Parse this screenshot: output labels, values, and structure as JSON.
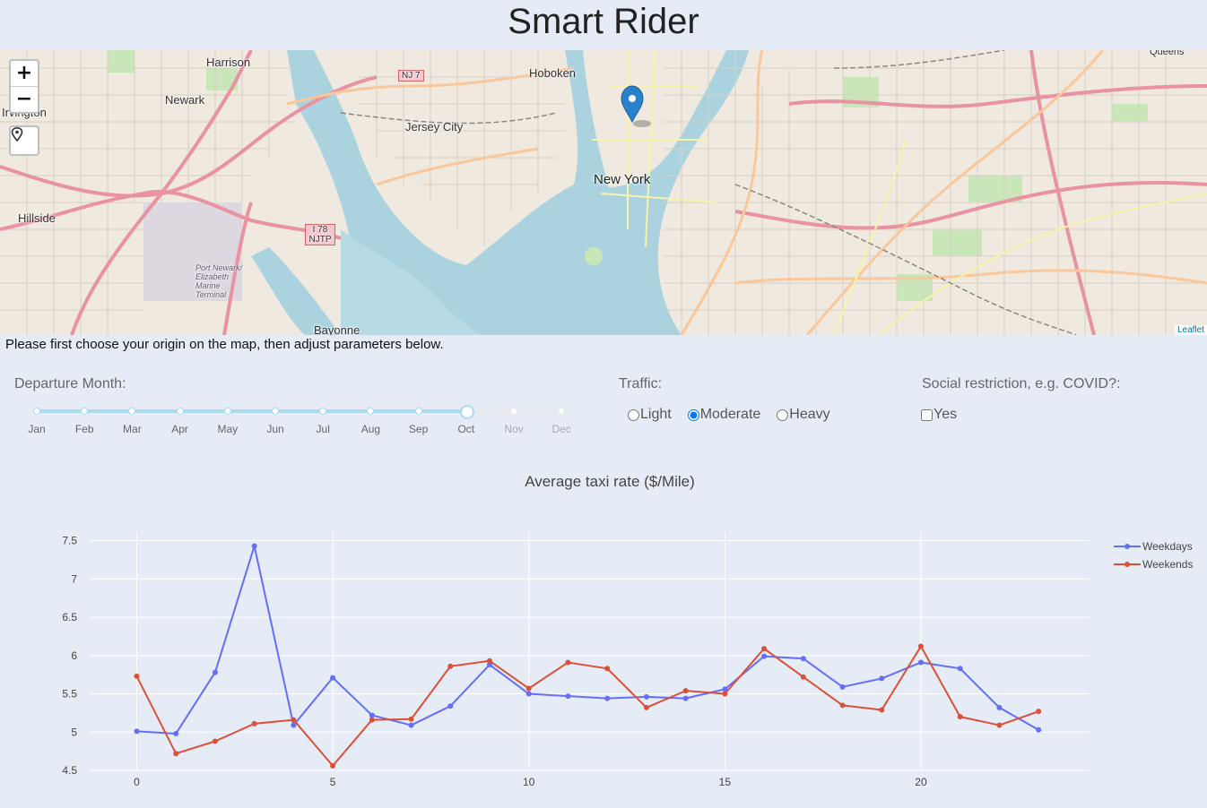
{
  "app": {
    "title": "Smart Rider"
  },
  "map": {
    "zoom_in": "+",
    "zoom_out": "−",
    "attribution": "Leaflet",
    "labels": [
      "Harrison",
      "Newark",
      "Irvington",
      "Hillside",
      "Hoboken",
      "Jersey City",
      "New York",
      "Bayonne",
      "Queens",
      "Port Newark/ Elizabeth Marine Terminal",
      "NJ 7",
      "I 78 NJTP"
    ]
  },
  "instructions": "Please first choose your origin on the map, then adjust parameters below.",
  "controls": {
    "month_label": "Departure Month:",
    "months": [
      "Jan",
      "Feb",
      "Mar",
      "Apr",
      "May",
      "Jun",
      "Jul",
      "Aug",
      "Sep",
      "Oct",
      "Nov",
      "Dec"
    ],
    "selected_month_index": 9,
    "traffic_label": "Traffic:",
    "traffic_options": [
      "Light",
      "Moderate",
      "Heavy"
    ],
    "traffic_selected": "Moderate",
    "social_label": "Social restriction, e.g. COVID?:",
    "social_option": "Yes",
    "social_checked": false
  },
  "chart_data": {
    "type": "line",
    "title": "Average taxi rate ($/Mile)",
    "xlabel": "",
    "ylabel": "",
    "x": [
      0,
      1,
      2,
      3,
      4,
      5,
      6,
      7,
      8,
      9,
      10,
      11,
      12,
      13,
      14,
      15,
      16,
      17,
      18,
      19,
      20,
      21,
      22,
      23
    ],
    "xlim": [
      -1.2,
      24.3
    ],
    "ylim": [
      4.5,
      7.6
    ],
    "xticks": [
      0,
      5,
      10,
      15,
      20
    ],
    "yticks": [
      4.5,
      5,
      5.5,
      6,
      6.5,
      7,
      7.5
    ],
    "ytick_labels": [
      "4.5",
      "5",
      "5.5",
      "6",
      "6.5",
      "7",
      "7.5"
    ],
    "grid": true,
    "legend_position": "top-right",
    "series": [
      {
        "name": "Weekdays",
        "color": "#636efa",
        "values": [
          5.01,
          4.98,
          5.78,
          7.43,
          5.09,
          5.71,
          5.22,
          5.09,
          5.34,
          5.88,
          5.5,
          5.47,
          5.44,
          5.46,
          5.44,
          5.56,
          5.99,
          5.96,
          5.59,
          5.7,
          5.91,
          5.83,
          5.32,
          5.03
        ]
      },
      {
        "name": "Weekends",
        "color": "#dd4f38",
        "values": [
          5.73,
          4.72,
          4.88,
          5.11,
          5.16,
          4.56,
          5.16,
          5.17,
          5.86,
          5.93,
          5.57,
          5.91,
          5.83,
          5.32,
          5.54,
          5.5,
          6.09,
          5.72,
          5.35,
          5.29,
          6.12,
          5.2,
          5.09,
          5.27
        ]
      }
    ]
  }
}
